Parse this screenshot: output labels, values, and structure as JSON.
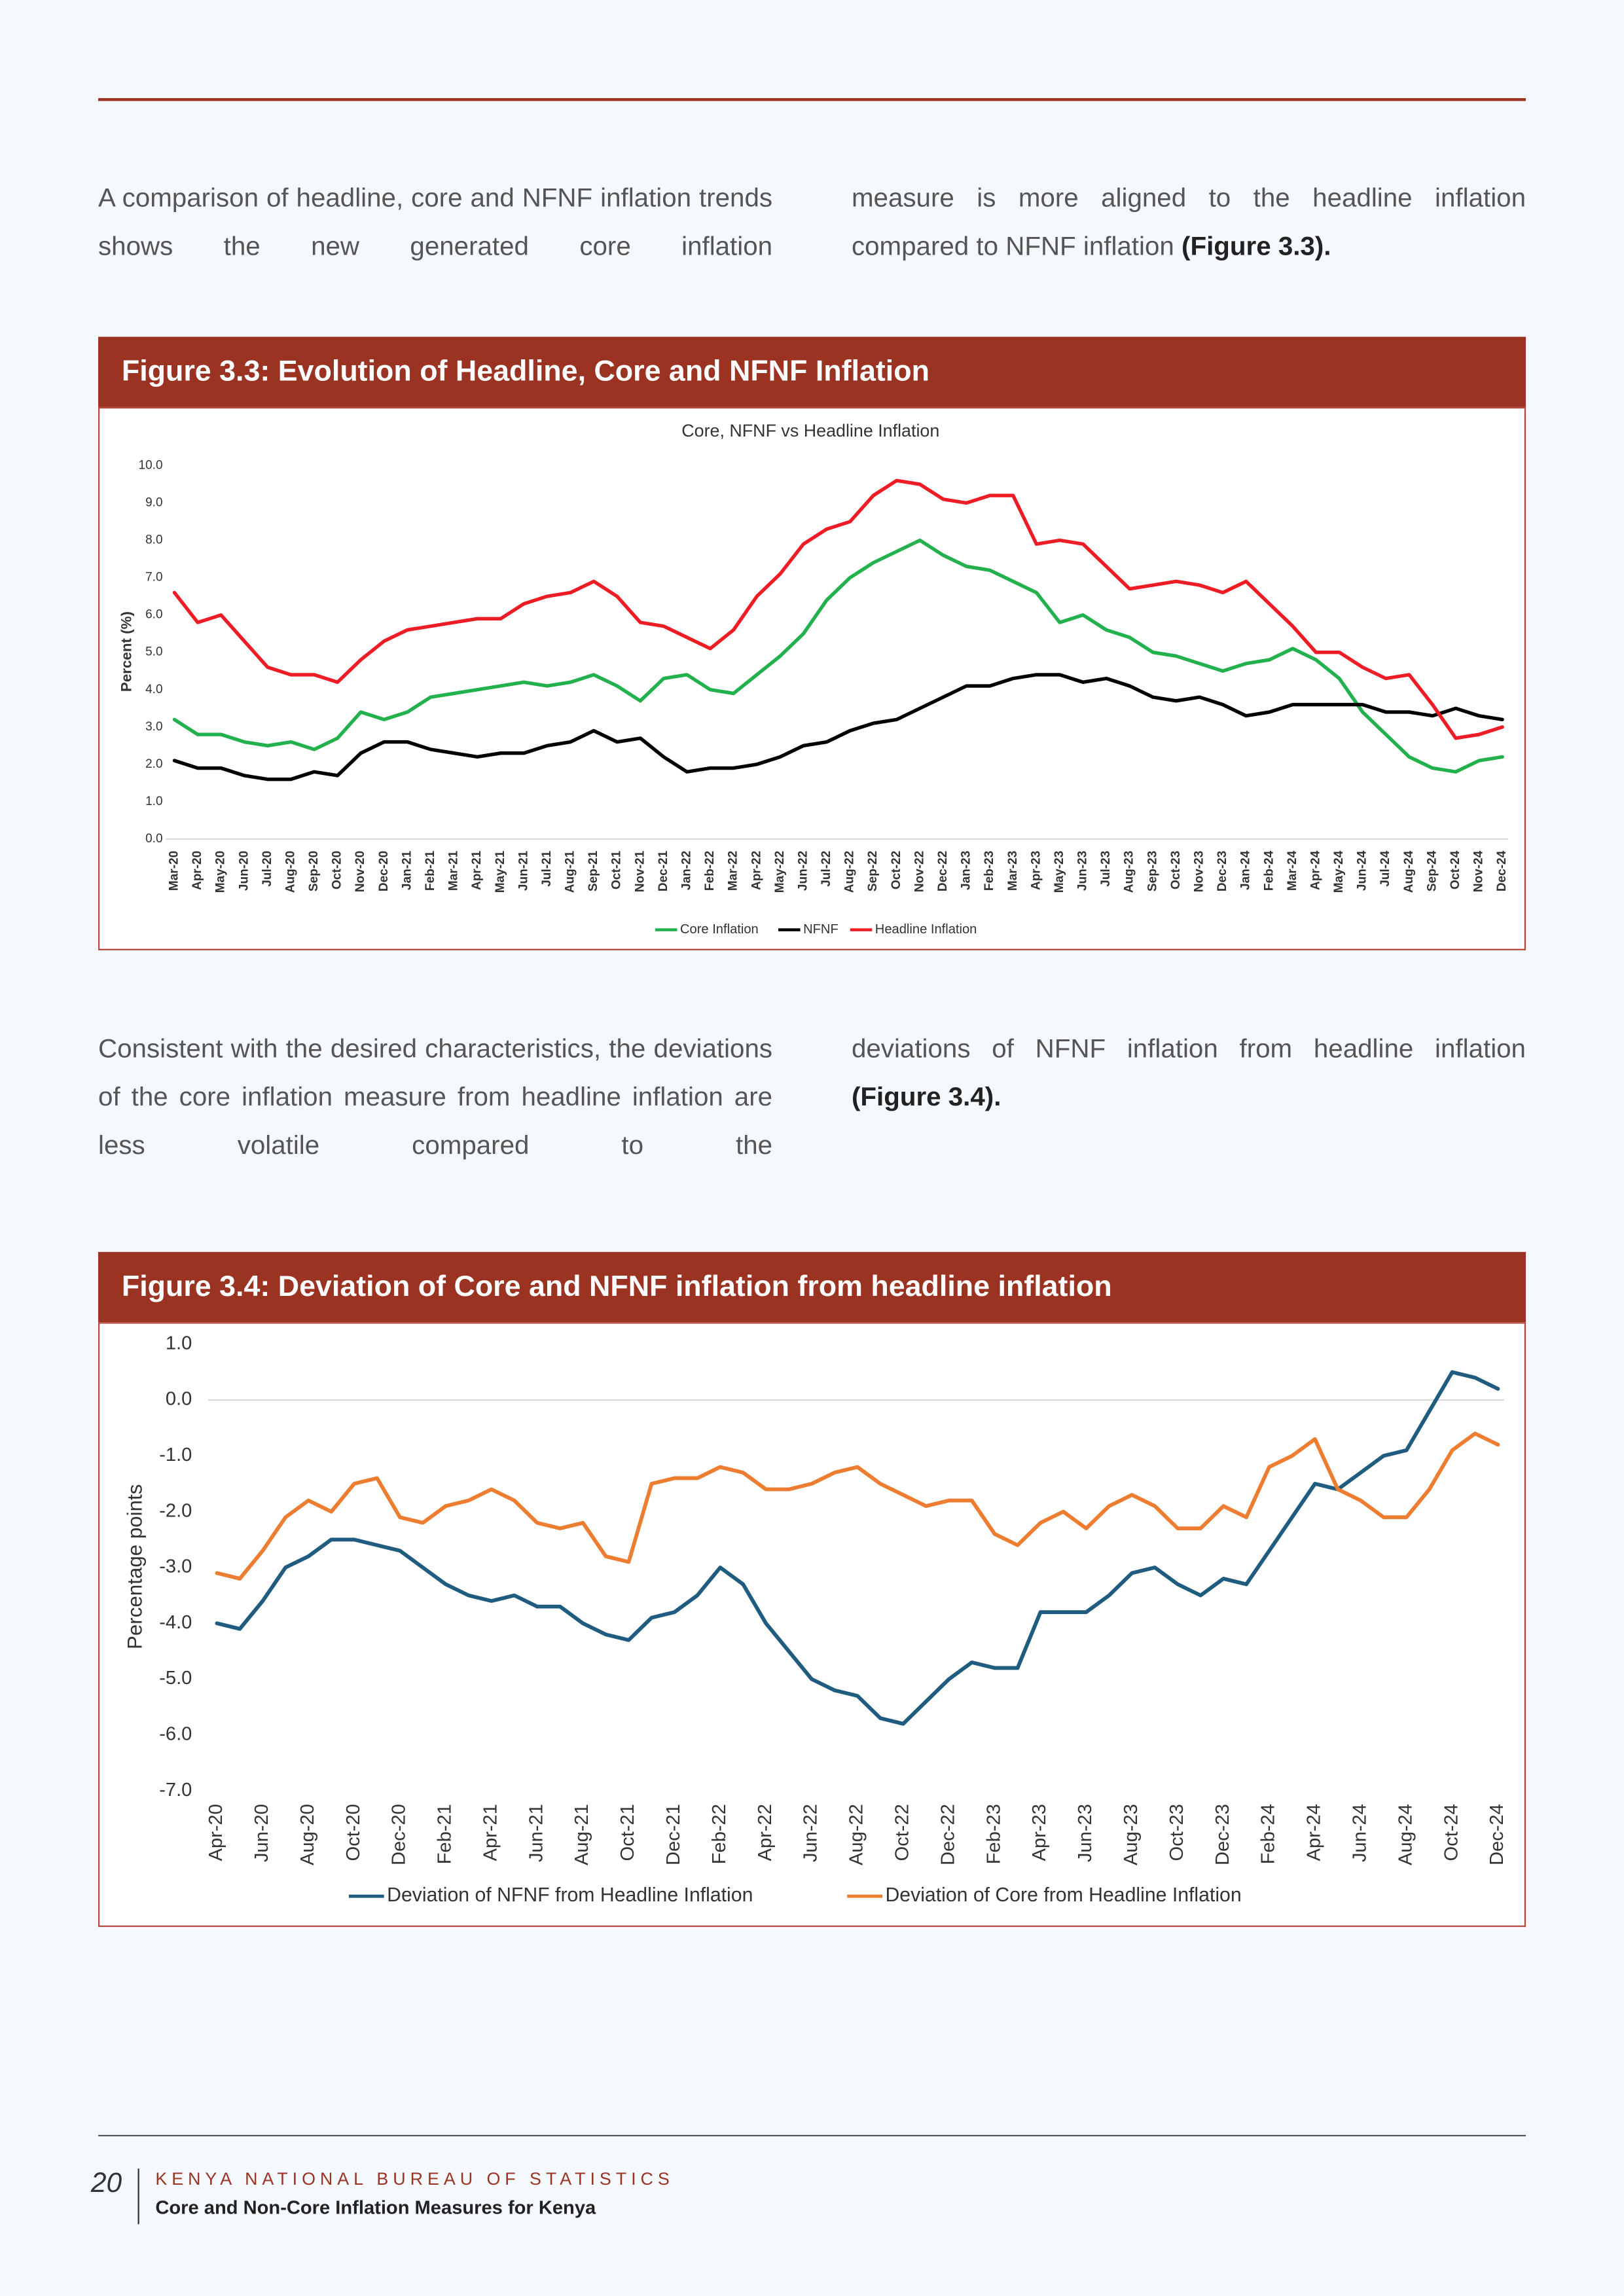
{
  "paragraphs": [
    {
      "left": "A comparison of headline, core and NFNF inflation trends shows the new generated core inflation",
      "right": "measure is more aligned to the headline inflation compared to NFNF inflation",
      "right_ref": "(Figure 3.3)."
    },
    {
      "left": "Consistent with the desired characteristics, the deviations of the core inflation measure from headline inflation are less volatile compared to the",
      "right": "deviations of NFNF inflation from headline inflation",
      "right_ref": "(Figure 3.4)."
    }
  ],
  "figures": [
    {
      "caption": "Figure 3.3: Evolution of Headline, Core and NFNF Inflation"
    },
    {
      "caption": "Figure 3.4: Deviation of Core and NFNF inflation from headline inflation"
    }
  ],
  "chart_data": [
    {
      "type": "line",
      "title": "Core, NFNF vs Headline Inflation",
      "y_label": "Percent (%)",
      "categories": [
        "Mar-20",
        "Apr-20",
        "May-20",
        "Jun-20",
        "Jul-20",
        "Aug-20",
        "Sep-20",
        "Oct-20",
        "Nov-20",
        "Dec-20",
        "Jan-21",
        "Feb-21",
        "Mar-21",
        "Apr-21",
        "May-21",
        "Jun-21",
        "Jul-21",
        "Aug-21",
        "Sep-21",
        "Oct-21",
        "Nov-21",
        "Dec-21",
        "Jan-22",
        "Feb-22",
        "Mar-22",
        "Apr-22",
        "May-22",
        "Jun-22",
        "Jul-22",
        "Aug-22",
        "Sep-22",
        "Oct-22",
        "Nov-22",
        "Dec-22",
        "Jan-23",
        "Feb-23",
        "Mar-23",
        "Apr-23",
        "May-23",
        "Jun-23",
        "Jul-23",
        "Aug-23",
        "Sep-23",
        "Oct-23",
        "Nov-23",
        "Dec-23",
        "Jan-24",
        "Feb-24",
        "Mar-24",
        "Apr-24",
        "May-24",
        "Jun-24",
        "Jul-24",
        "Aug-24",
        "Sep-24",
        "Oct-24",
        "Nov-24",
        "Dec-24"
      ],
      "series": [
        {
          "name": "Core Inflation",
          "color": "#22b14c",
          "values": [
            3.2,
            2.8,
            2.8,
            2.6,
            2.5,
            2.6,
            2.4,
            2.7,
            3.4,
            3.2,
            3.4,
            3.8,
            3.9,
            4.0,
            4.1,
            4.2,
            4.1,
            4.2,
            4.4,
            4.1,
            3.7,
            4.3,
            4.4,
            4.0,
            3.9,
            4.4,
            4.9,
            5.5,
            6.4,
            7.0,
            7.4,
            7.7,
            8.0,
            7.6,
            7.3,
            7.2,
            6.9,
            6.6,
            5.8,
            6.0,
            5.6,
            5.4,
            5.0,
            4.9,
            4.7,
            4.5,
            4.7,
            4.8,
            5.1,
            4.8,
            4.3,
            3.4,
            2.8,
            2.2,
            1.9,
            1.8,
            2.1,
            2.2
          ]
        },
        {
          "name": "NFNF",
          "color": "#000000",
          "values": [
            2.1,
            1.9,
            1.9,
            1.7,
            1.6,
            1.6,
            1.8,
            1.7,
            2.3,
            2.6,
            2.6,
            2.4,
            2.3,
            2.2,
            2.3,
            2.3,
            2.5,
            2.6,
            2.9,
            2.6,
            2.7,
            2.2,
            1.8,
            1.9,
            1.9,
            2.0,
            2.2,
            2.5,
            2.6,
            2.9,
            3.1,
            3.2,
            3.5,
            3.8,
            4.1,
            4.1,
            4.3,
            4.4,
            4.4,
            4.2,
            4.3,
            4.1,
            3.8,
            3.7,
            3.8,
            3.6,
            3.3,
            3.4,
            3.6,
            3.6,
            3.6,
            3.6,
            3.4,
            3.4,
            3.3,
            3.5,
            3.3,
            3.2
          ]
        },
        {
          "name": "Headline Inflation",
          "color": "#ee1c25",
          "values": [
            6.6,
            5.8,
            6.0,
            5.3,
            4.6,
            4.4,
            4.4,
            4.2,
            4.8,
            5.3,
            5.6,
            5.7,
            5.8,
            5.9,
            5.9,
            6.3,
            6.5,
            6.6,
            6.9,
            6.5,
            5.8,
            5.7,
            5.4,
            5.1,
            5.6,
            6.5,
            7.1,
            7.9,
            8.3,
            8.5,
            9.2,
            9.6,
            9.5,
            9.1,
            9.0,
            9.2,
            9.2,
            7.9,
            8.0,
            7.9,
            7.3,
            6.7,
            6.8,
            6.9,
            6.8,
            6.6,
            6.9,
            6.3,
            5.7,
            5.0,
            5.0,
            4.6,
            4.3,
            4.4,
            3.6,
            2.7,
            2.8,
            3.0
          ]
        }
      ],
      "ylim": [
        0,
        10
      ],
      "yticks": [
        {
          "value": 0,
          "label": "0.0"
        },
        {
          "value": 1,
          "label": "1.0"
        },
        {
          "value": 2,
          "label": "2.0"
        },
        {
          "value": 3,
          "label": "3.0"
        },
        {
          "value": 4,
          "label": "4.0"
        },
        {
          "value": 5,
          "label": "5.0"
        },
        {
          "value": 6,
          "label": "6.0"
        },
        {
          "value": 7,
          "label": "7.0"
        },
        {
          "value": 8,
          "label": "8.0"
        },
        {
          "value": 9,
          "label": "9.0"
        },
        {
          "value": 10,
          "label": "10.0"
        }
      ],
      "grid": false,
      "legend": "bottom"
    },
    {
      "type": "line",
      "y_label": "Percentage points",
      "categories": [
        "Apr-20",
        null,
        "Jun-20",
        null,
        "Aug-20",
        null,
        "Oct-20",
        null,
        "Dec-20",
        null,
        "Feb-21",
        null,
        "Apr-21",
        null,
        "Jun-21",
        null,
        "Aug-21",
        null,
        "Oct-21",
        null,
        "Dec-21",
        null,
        "Feb-22",
        null,
        "Apr-22",
        null,
        "Jun-22",
        null,
        "Aug-22",
        null,
        "Oct-22",
        null,
        "Dec-22",
        null,
        "Feb-23",
        null,
        "Apr-23",
        null,
        "Jun-23",
        null,
        "Aug-23",
        null,
        "Oct-23",
        null,
        "Dec-23",
        null,
        "Feb-24",
        null,
        "Apr-24",
        null,
        "Jun-24",
        null,
        "Aug-24",
        null,
        "Oct-24",
        null,
        "Dec-24"
      ],
      "series": [
        {
          "name": "Deviation of NFNF from Headline Inflation",
          "color": "#1f5c7f",
          "values": [
            -4.0,
            -4.1,
            -3.6,
            -3.0,
            -2.8,
            -2.5,
            -2.5,
            -2.6,
            -2.7,
            -3.0,
            -3.3,
            -3.5,
            -3.6,
            -3.5,
            -3.7,
            -3.7,
            -4.0,
            -4.2,
            -4.3,
            -3.9,
            -3.8,
            -3.5,
            -3.0,
            -3.3,
            -4.0,
            -4.5,
            -5.0,
            -5.2,
            -5.3,
            -5.7,
            -5.8,
            -5.4,
            -5.0,
            -4.7,
            -4.8,
            -4.8,
            -3.8,
            -3.8,
            -3.8,
            -3.5,
            -3.1,
            -3.0,
            -3.3,
            -3.5,
            -3.2,
            -3.3,
            -2.7,
            -2.1,
            -1.5,
            -1.6,
            -1.3,
            -1.0,
            -0.9,
            -0.2,
            0.5,
            0.4,
            0.2
          ]
        },
        {
          "name": "Deviation of Core from Headline Inflation",
          "color": "#ed7d31",
          "values": [
            -3.1,
            -3.2,
            -2.7,
            -2.1,
            -1.8,
            -2.0,
            -1.5,
            -1.4,
            -2.1,
            -2.2,
            -1.9,
            -1.8,
            -1.6,
            -1.8,
            -2.2,
            -2.3,
            -2.2,
            -2.8,
            -2.9,
            -1.5,
            -1.4,
            -1.4,
            -1.2,
            -1.3,
            -1.6,
            -1.6,
            -1.5,
            -1.3,
            -1.2,
            -1.5,
            -1.7,
            -1.9,
            -1.8,
            -1.8,
            -2.4,
            -2.6,
            -2.2,
            -2.0,
            -2.3,
            -1.9,
            -1.7,
            -1.9,
            -2.3,
            -2.3,
            -1.9,
            -2.1,
            -1.2,
            -1.0,
            -0.7,
            -1.6,
            -1.8,
            -2.1,
            -2.1,
            -1.6,
            -0.9,
            -0.6,
            -0.8
          ]
        }
      ],
      "ylim": [
        -7,
        1
      ],
      "yticks": [
        {
          "value": -7,
          "label": "-7.0"
        },
        {
          "value": -6,
          "label": "-6.0"
        },
        {
          "value": -5,
          "label": "-5.0"
        },
        {
          "value": -4,
          "label": "-4.0"
        },
        {
          "value": -3,
          "label": "-3.0"
        },
        {
          "value": -2,
          "label": "-2.0"
        },
        {
          "value": -1,
          "label": "-1.0"
        },
        {
          "value": 0,
          "label": "0.0"
        },
        {
          "value": 1,
          "label": "1.0"
        }
      ],
      "grid": false,
      "legend": "bottom"
    }
  ],
  "footer": {
    "page_number": "20",
    "organization": "KENYA NATIONAL BUREAU OF STATISTICS",
    "publication": "Core and Non-Core Inflation Measures for Kenya"
  }
}
